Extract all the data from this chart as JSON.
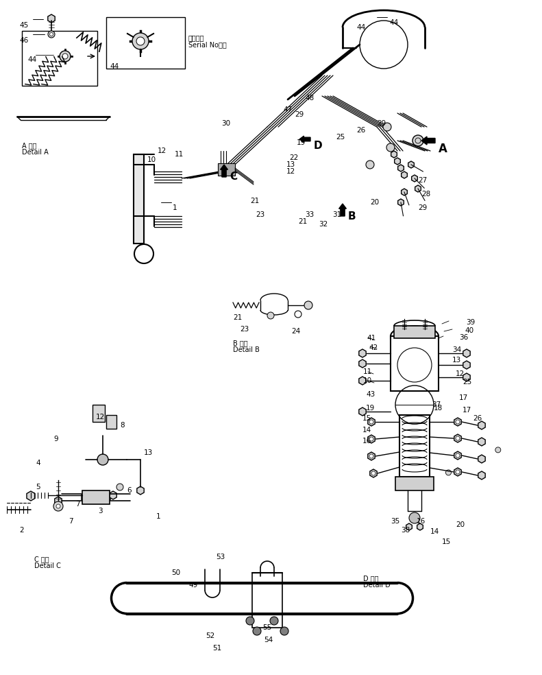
{
  "bg_color": "#ffffff",
  "fig_width": 7.72,
  "fig_height": 9.64,
  "dpi": 100
}
